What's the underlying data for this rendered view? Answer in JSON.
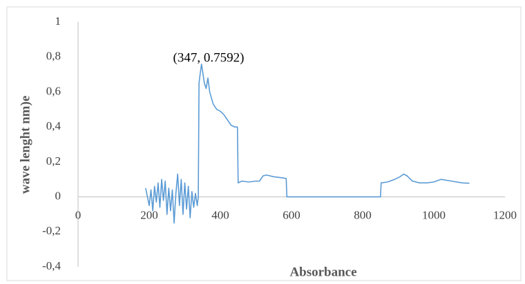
{
  "chart_data": {
    "type": "line",
    "y_label": "wave lenght nm)e",
    "x_label": "Absorbance",
    "annotation": "(347, 0.7592)",
    "xlim": [
      0,
      1200
    ],
    "xticks": [
      0,
      200,
      400,
      600,
      800,
      1000,
      1200
    ],
    "ylim": [
      -0.4,
      1
    ],
    "yticks": [
      {
        "value": -0.4,
        "label": "-0,4"
      },
      {
        "value": -0.2,
        "label": "-0,2"
      },
      0,
      {
        "value": 0.2,
        "label": "0,2"
      },
      {
        "value": 0.4,
        "label": "0,4"
      },
      {
        "value": 0.6,
        "label": "0,6"
      },
      {
        "value": 0.8,
        "label": "0,8"
      },
      1
    ],
    "grid": false,
    "series": [
      {
        "color": "#5b9bd5",
        "x": [
          190,
          195,
          200,
          205,
          210,
          215,
          220,
          225,
          230,
          235,
          240,
          245,
          250,
          255,
          260,
          265,
          270,
          275,
          280,
          285,
          290,
          295,
          300,
          305,
          310,
          315,
          320,
          325,
          330,
          335,
          338,
          340,
          343,
          347,
          350,
          355,
          360,
          365,
          370,
          380,
          390,
          400,
          410,
          420,
          430,
          440,
          448,
          450,
          460,
          480,
          500,
          510,
          520,
          530,
          550,
          570,
          585,
          587,
          850,
          852,
          870,
          890,
          905,
          915,
          925,
          940,
          960,
          980,
          1000,
          1020,
          1050,
          1080,
          1100
        ],
        "values": [
          0.05,
          0,
          -0.05,
          0.04,
          -0.08,
          0.06,
          -0.03,
          0.08,
          -0.06,
          0.1,
          -0.02,
          0.09,
          -0.1,
          0.05,
          -0.08,
          0.04,
          -0.15,
          0.02,
          0.13,
          -0.05,
          0.1,
          -0.1,
          0.08,
          -0.07,
          0.06,
          -0.12,
          0.03,
          -0.06,
          0.02,
          -0.05,
          0,
          0.65,
          0.7,
          0.7592,
          0.72,
          0.65,
          0.62,
          0.68,
          0.6,
          0.53,
          0.5,
          0.49,
          0.47,
          0.44,
          0.41,
          0.4,
          0.4,
          0.08,
          0.09,
          0.085,
          0.09,
          0.09,
          0.12,
          0.125,
          0.115,
          0.11,
          0.105,
          0,
          0,
          0.08,
          0.085,
          0.1,
          0.115,
          0.13,
          0.12,
          0.09,
          0.08,
          0.08,
          0.085,
          0.1,
          0.09,
          0.08,
          0.078
        ]
      }
    ]
  }
}
